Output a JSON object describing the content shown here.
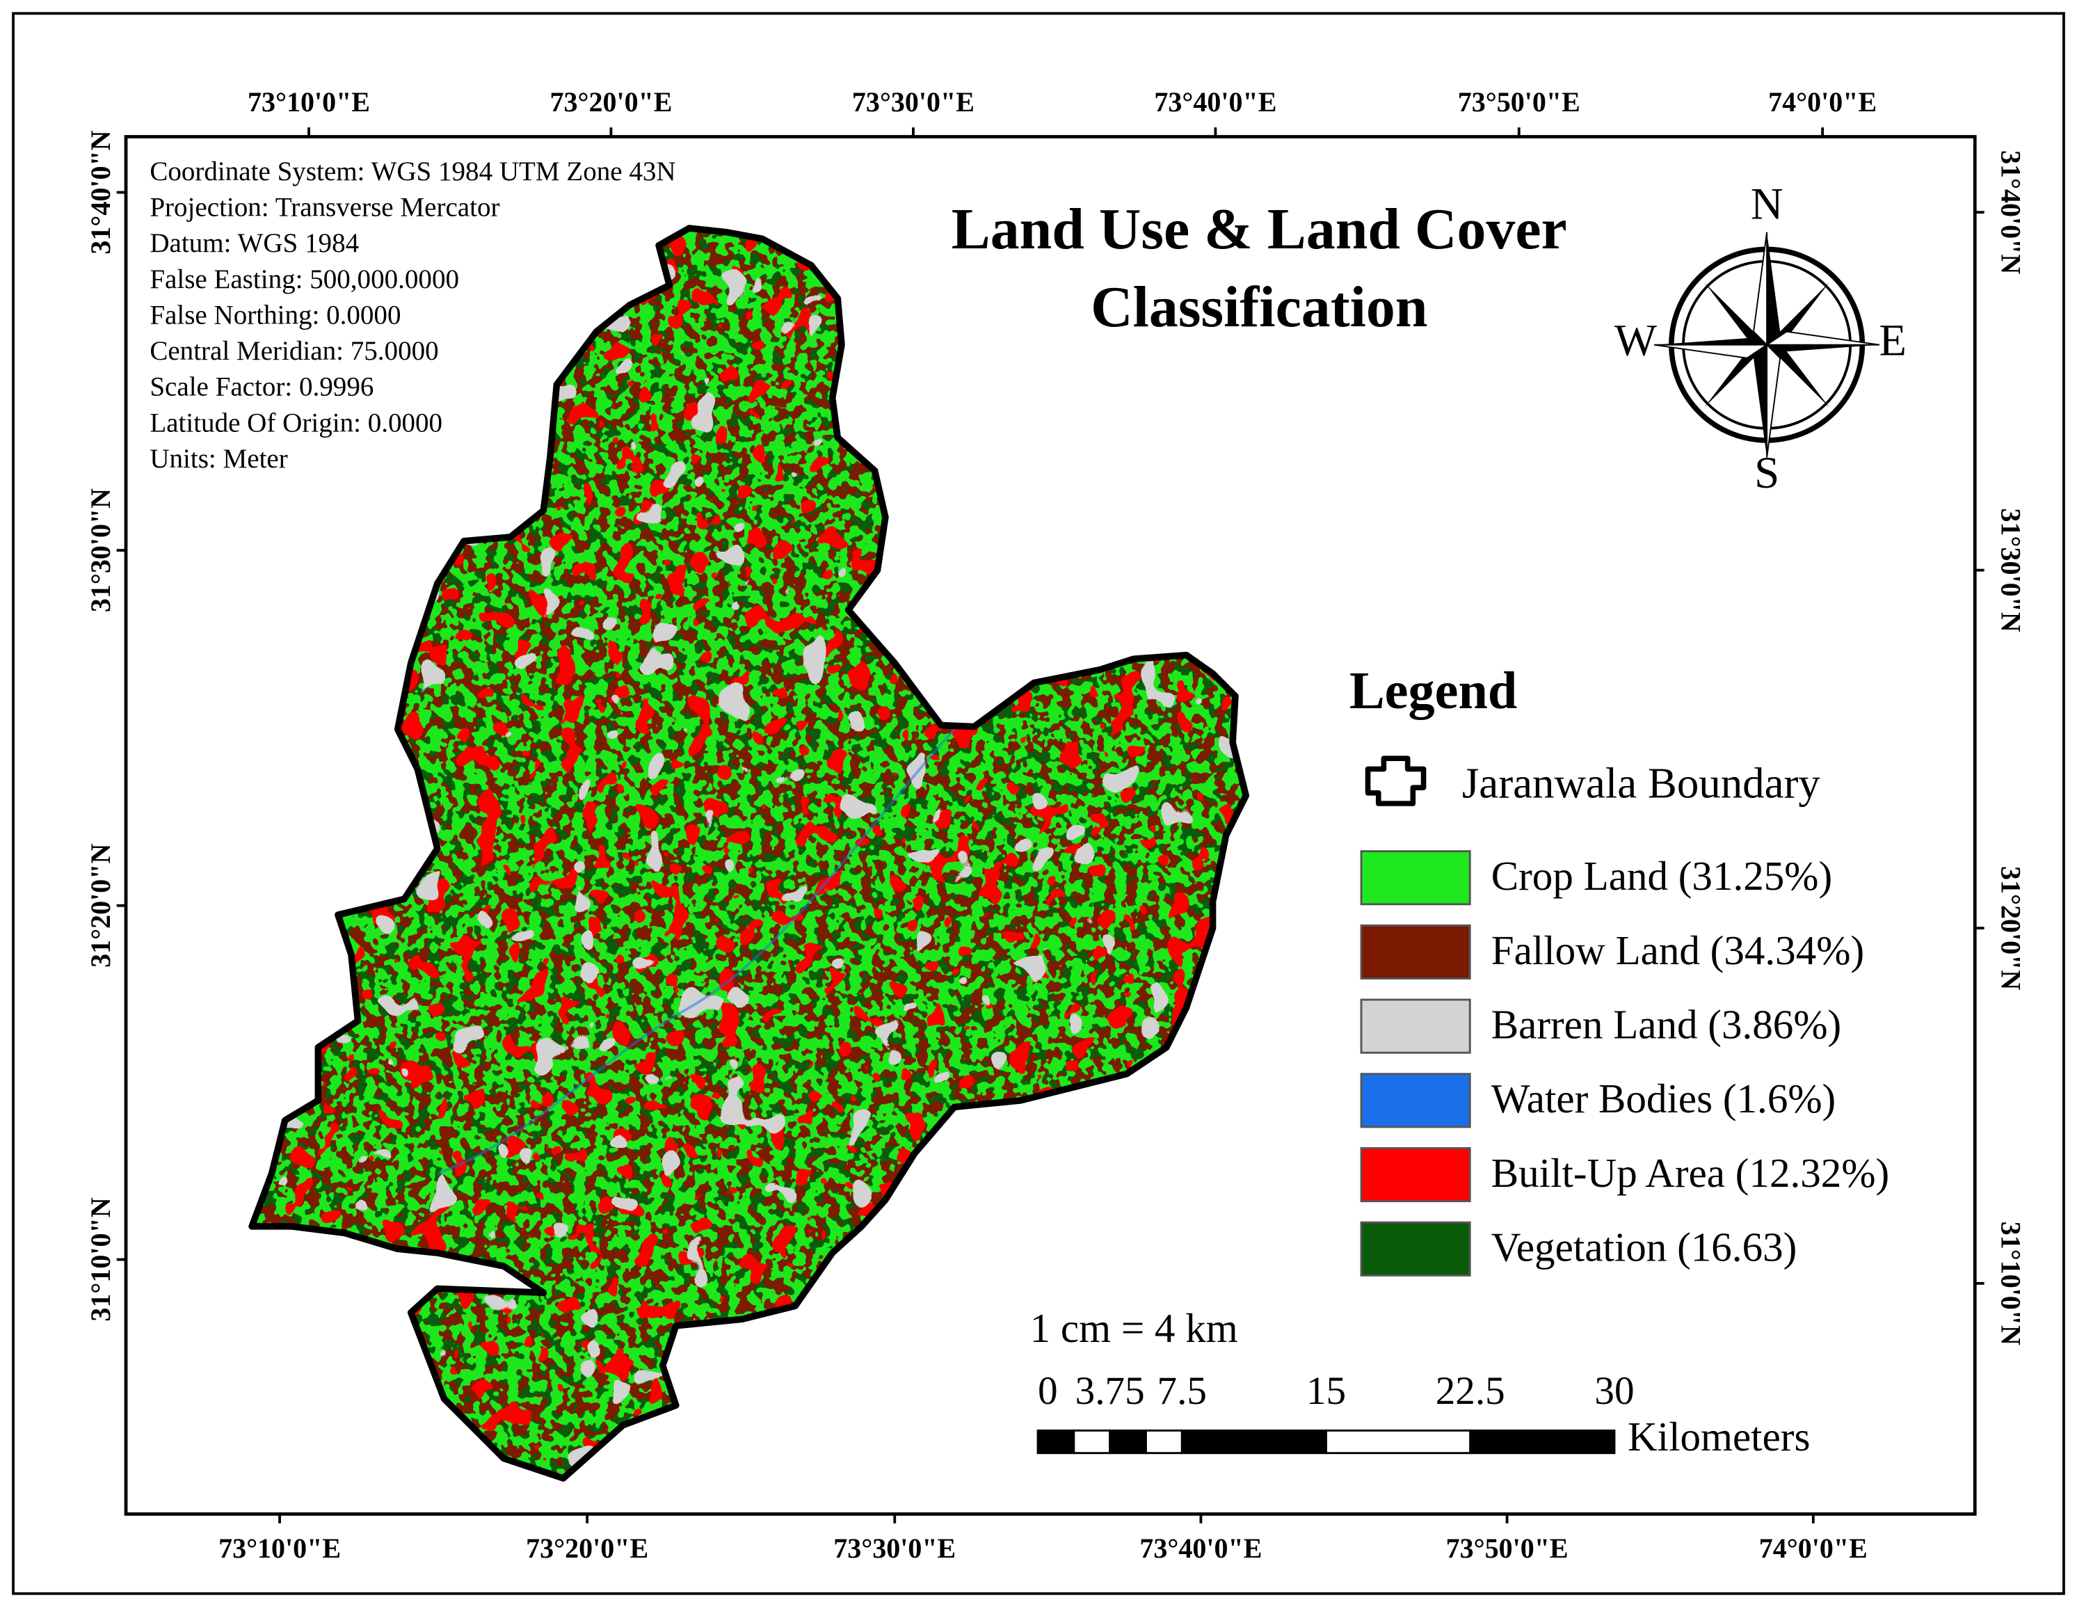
{
  "title": [
    "Land Use & Land Cover",
    "Classification"
  ],
  "info": [
    "Coordinate System: WGS 1984 UTM Zone 43N",
    "Projection: Transverse Mercator",
    "Datum: WGS 1984",
    "False Easting: 500,000.0000",
    "False Northing: 0.0000",
    "Central Meridian: 75.0000",
    "Scale Factor: 0.9996",
    "Latitude Of Origin: 0.0000",
    "Units: Meter"
  ],
  "graticule": {
    "top": [
      "73°10'0\"E",
      "73°20'0\"E",
      "73°30'0\"E",
      "73°40'0\"E",
      "73°50'0\"E",
      "74°0'0\"E"
    ],
    "bottom": [
      "73°10'0\"E",
      "73°20'0\"E",
      "73°30'0\"E",
      "73°40'0\"E",
      "73°50'0\"E",
      "74°0'0\"E"
    ],
    "left": [
      "31°40'0\"N",
      "31°30'0\"N",
      "31°20'0\"N",
      "31°10'0\"N"
    ],
    "right": [
      "31°40'0\"N",
      "31°30'0\"N",
      "31°20'0\"N",
      "31°10'0\"N"
    ]
  },
  "compass": {
    "n": "N",
    "e": "E",
    "s": "S",
    "w": "W"
  },
  "legend": {
    "title": "Legend",
    "boundary": "Jaranwala Boundary",
    "items": [
      {
        "label": "Crop Land (31.25%)",
        "color": "#1ee81e"
      },
      {
        "label": "Fallow Land (34.34%)",
        "color": "#7b1a00"
      },
      {
        "label": "Barren Land (3.86%)",
        "color": "#d3d3d3"
      },
      {
        "label": "Water Bodies (1.6%)",
        "color": "#1a6fe8"
      },
      {
        "label": "Built-Up Area (12.32%)",
        "color": "#ff0000"
      },
      {
        "label": "Vegetation (16.63)",
        "color": "#0a5c0a"
      }
    ]
  },
  "scale": {
    "ratio": "1 cm = 4 km",
    "ticks": [
      0,
      3.75,
      7.5,
      15,
      22.5,
      30
    ],
    "unit": "Kilometers"
  }
}
